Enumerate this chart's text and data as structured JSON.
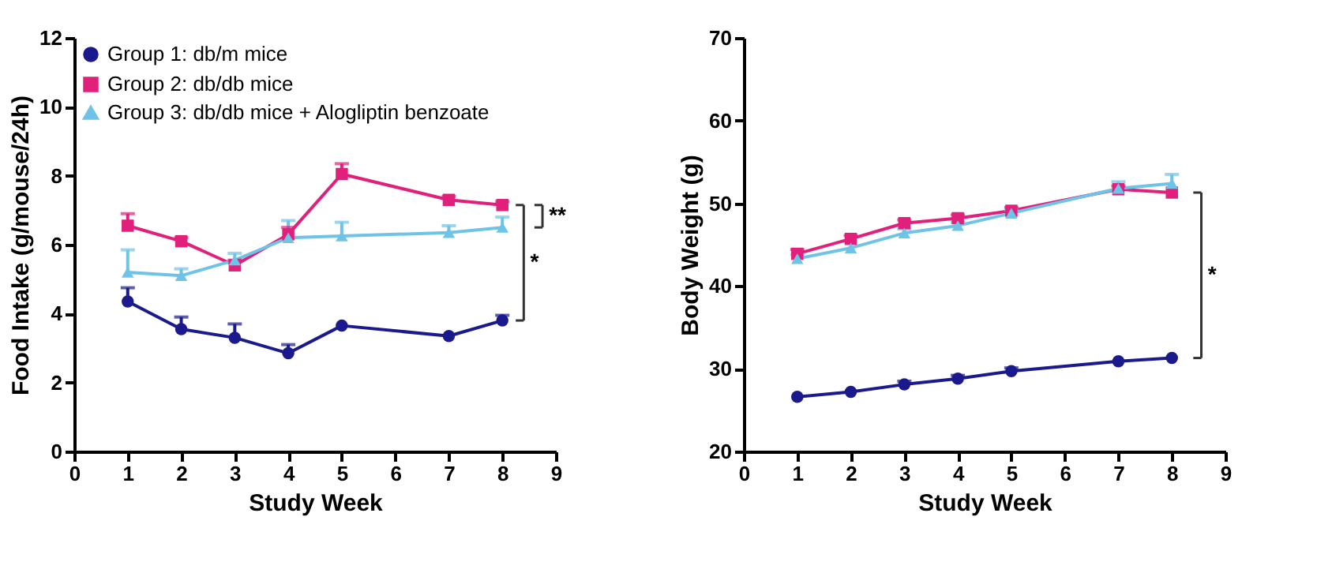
{
  "chart_data": [
    {
      "type": "line",
      "xlabel": "Study Week",
      "ylabel": "Food Intake (g/mouse/24h)",
      "xlim": [
        0,
        9
      ],
      "xticks": [
        0,
        1,
        2,
        3,
        4,
        5,
        6,
        7,
        8,
        9
      ],
      "ylim": [
        0,
        12
      ],
      "yticks": [
        0,
        2,
        4,
        6,
        8,
        10,
        12
      ],
      "grid": false,
      "legend": "top left",
      "x": [
        1,
        2,
        3,
        4,
        5,
        7,
        8
      ],
      "series": [
        {
          "name": "Group 1: db/m mice",
          "color": "#1a1a8c",
          "marker": "circle",
          "values": [
            4.35,
            3.55,
            3.3,
            2.85,
            3.65,
            3.35,
            3.8
          ],
          "errors": [
            [
              4.35,
              4.75
            ],
            [
              3.55,
              3.9
            ],
            [
              3.3,
              3.7
            ],
            [
              2.85,
              3.1
            ],
            null,
            null,
            [
              3.8,
              3.95
            ]
          ]
        },
        {
          "name": "Group 2: db/db mice",
          "color": "#e0207a",
          "marker": "square",
          "values": [
            6.55,
            6.1,
            5.4,
            6.3,
            8.05,
            7.3,
            7.15
          ],
          "errors": [
            [
              6.55,
              6.9
            ],
            [
              6.1,
              6.2
            ],
            [
              5.4,
              5.55
            ],
            [
              6.3,
              6.5
            ],
            [
              8.05,
              8.35
            ],
            [
              7.3,
              7.4
            ],
            [
              7.15,
              7.25
            ]
          ]
        },
        {
          "name": "Group 3: db/db mice + Alogliptin benzoate",
          "color": "#6ec3e6",
          "marker": "triangle",
          "values": [
            5.2,
            5.1,
            5.55,
            6.2,
            6.25,
            6.35,
            6.5
          ],
          "errors": [
            [
              5.2,
              5.85
            ],
            [
              5.1,
              5.3
            ],
            [
              5.55,
              5.75
            ],
            [
              6.2,
              6.7
            ],
            [
              6.25,
              6.65
            ],
            [
              6.35,
              6.55
            ],
            [
              6.5,
              6.8
            ]
          ]
        }
      ],
      "annotations": [
        "**",
        "*"
      ]
    },
    {
      "type": "line",
      "xlabel": "Study Week",
      "ylabel": "Body Weight (g)",
      "xlim": [
        0,
        9
      ],
      "xticks": [
        0,
        1,
        2,
        3,
        4,
        5,
        6,
        7,
        8,
        9
      ],
      "ylim": [
        20,
        70
      ],
      "yticks": [
        20,
        30,
        40,
        50,
        60,
        70
      ],
      "grid": false,
      "legend": "top left",
      "x": [
        1,
        2,
        3,
        4,
        5,
        7,
        8
      ],
      "series": [
        {
          "name": "Group 1: db/m mice",
          "color": "#1a1a8c",
          "marker": "circle",
          "values": [
            26.6,
            27.2,
            28.1,
            28.8,
            29.7,
            30.9,
            31.3
          ],
          "errors": [
            null,
            null,
            [
              28.1,
              28.5
            ],
            [
              28.8,
              29.2
            ],
            [
              29.7,
              30.1
            ],
            null,
            null
          ]
        },
        {
          "name": "Group 2: db/db mice",
          "color": "#e0207a",
          "marker": "square",
          "values": [
            43.9,
            45.7,
            47.6,
            48.2,
            49.1,
            51.7,
            51.3
          ],
          "errors": [
            [
              43.9,
              44.4
            ],
            [
              45.7,
              46.1
            ],
            [
              47.6,
              48.0
            ],
            [
              48.2,
              48.6
            ],
            [
              49.1,
              49.5
            ],
            [
              51.7,
              52.1
            ],
            null
          ]
        },
        {
          "name": "Group 3: db/db mice + Alogliptin benzoate",
          "color": "#6ec3e6",
          "marker": "triangle",
          "values": [
            43.3,
            44.6,
            46.4,
            47.3,
            48.8,
            51.8,
            52.4
          ],
          "errors": [
            [
              43.3,
              43.8
            ],
            null,
            [
              46.4,
              46.9
            ],
            [
              47.3,
              47.7
            ],
            [
              48.8,
              49.2
            ],
            [
              51.8,
              52.6
            ],
            [
              52.4,
              53.5
            ]
          ]
        }
      ],
      "annotations": [
        "*"
      ]
    }
  ]
}
